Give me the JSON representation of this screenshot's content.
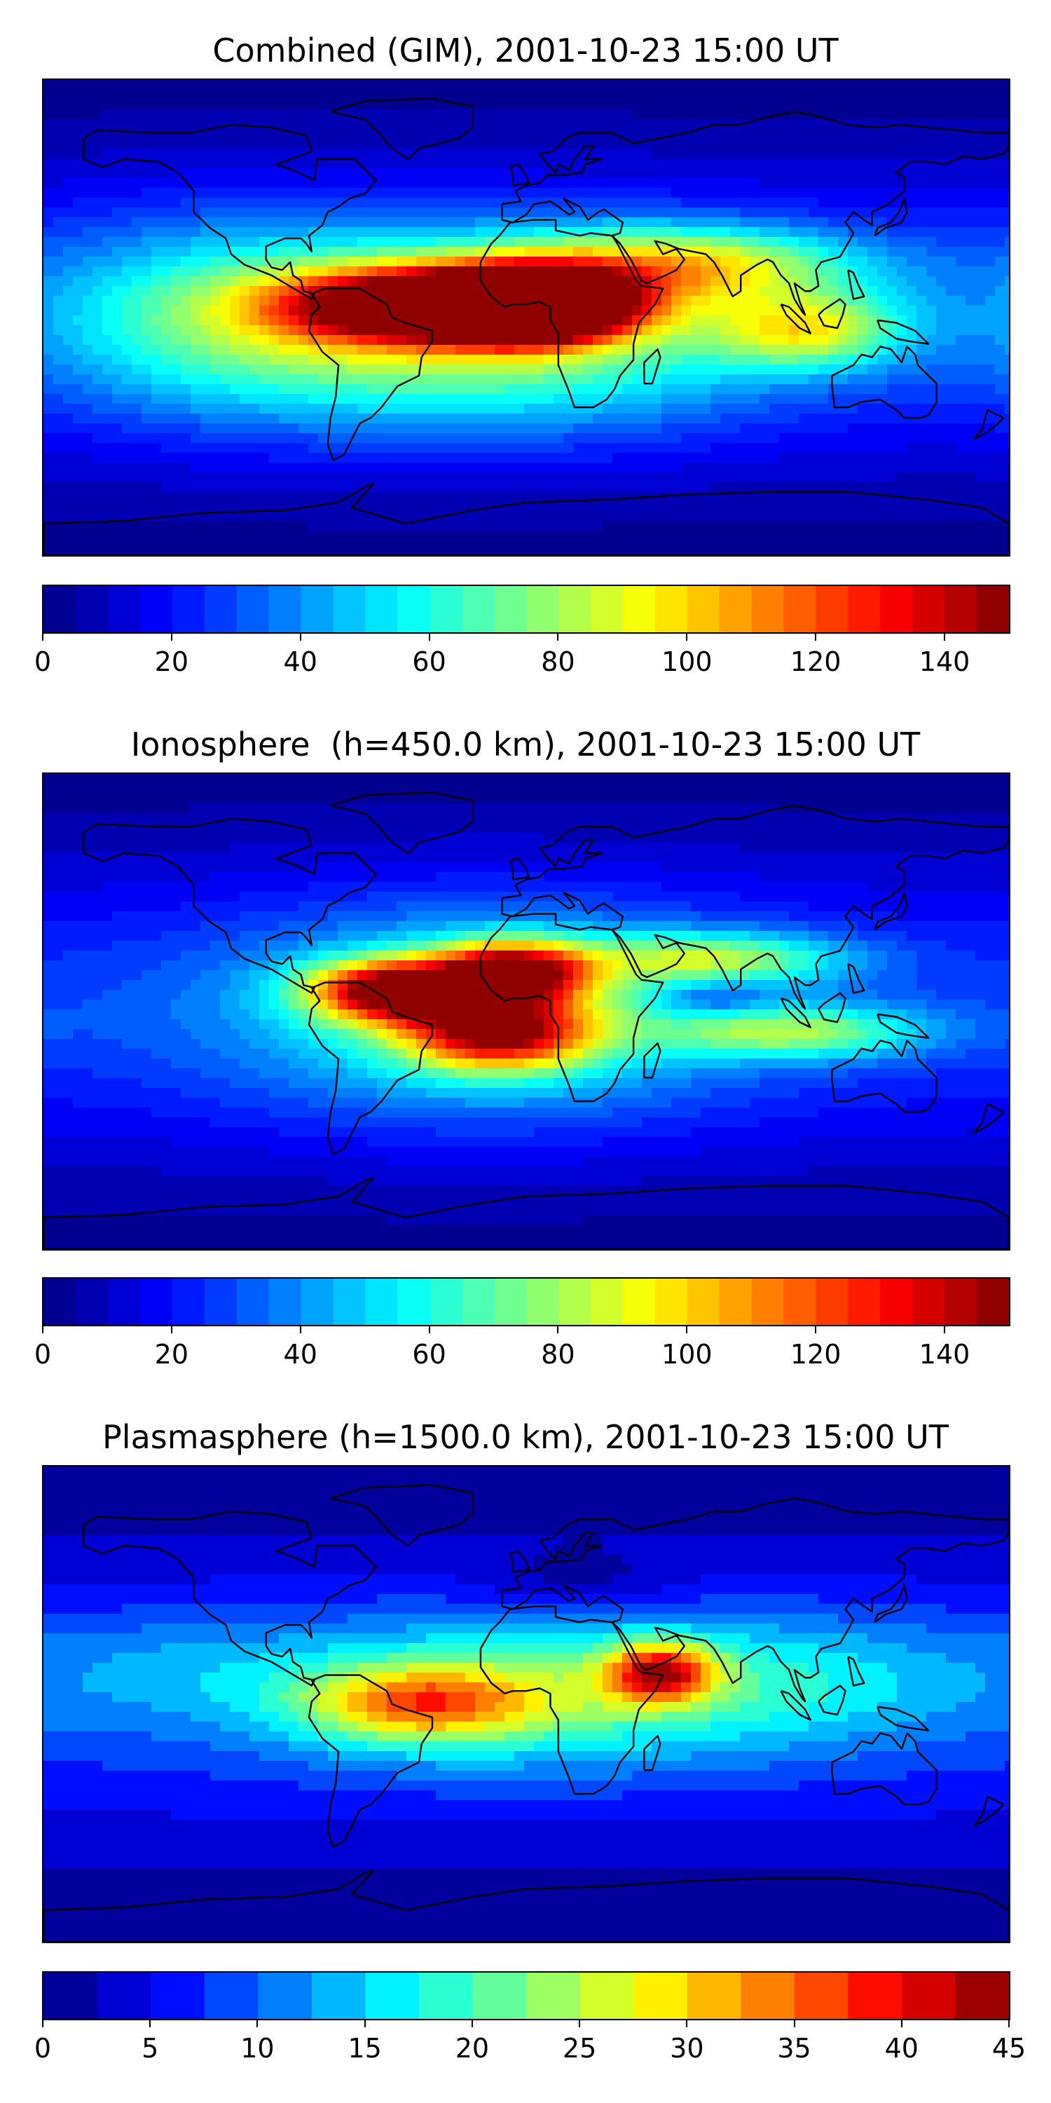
{
  "panels": [
    {
      "title": "Combined (GIM), 2001-10-23 15:00 UT",
      "colorbar": {
        "vmin": 0,
        "vmax": 150,
        "levels": 30,
        "ticks": [
          "0",
          "20",
          "40",
          "60",
          "80",
          "100",
          "120",
          "140"
        ]
      },
      "blobs": [
        {
          "lon": -30,
          "lat": 5,
          "peak": 145,
          "sx": 38,
          "sy": 9
        },
        {
          "lon": 5,
          "lat": 5,
          "peak": 140,
          "sx": 22,
          "sy": 9
        },
        {
          "lon": -10,
          "lat": -5,
          "peak": 60,
          "sx": 70,
          "sy": 25
        },
        {
          "lon": 60,
          "lat": 20,
          "peak": 60,
          "sx": 45,
          "sy": 10
        },
        {
          "lon": 105,
          "lat": -5,
          "peak": 55,
          "sx": 25,
          "sy": 10
        },
        {
          "lon": -110,
          "lat": 0,
          "peak": 35,
          "sx": 50,
          "sy": 25
        }
      ]
    },
    {
      "title": "Ionosphere  (h=450.0 km), 2001-10-23 15:00 UT",
      "colorbar": {
        "vmin": 0,
        "vmax": 150,
        "levels": 30,
        "ticks": [
          "0",
          "20",
          "40",
          "60",
          "80",
          "100",
          "120",
          "140"
        ]
      },
      "blobs": [
        {
          "lon": -50,
          "lat": 8,
          "peak": 110,
          "sx": 22,
          "sy": 8
        },
        {
          "lon": -5,
          "lat": 15,
          "peak": 108,
          "sx": 20,
          "sy": 8
        },
        {
          "lon": -10,
          "lat": -8,
          "peak": 95,
          "sx": 25,
          "sy": 10
        },
        {
          "lon": -15,
          "lat": 0,
          "peak": 40,
          "sx": 65,
          "sy": 28
        },
        {
          "lon": 70,
          "lat": 20,
          "peak": 50,
          "sx": 35,
          "sy": 7
        },
        {
          "lon": 100,
          "lat": -8,
          "peak": 50,
          "sx": 35,
          "sy": 7
        },
        {
          "lon": 70,
          "lat": 5,
          "peak": -20,
          "sx": 14,
          "sy": 5
        }
      ]
    },
    {
      "title": "Plasmasphere (h=1500.0 km), 2001-10-23 15:00 UT",
      "colorbar": {
        "vmin": 0,
        "vmax": 45,
        "levels": 18,
        "ticks": [
          "0",
          "5",
          "10",
          "15",
          "20",
          "25",
          "30",
          "35",
          "40",
          "45"
        ]
      },
      "blobs": [
        {
          "lon": 50,
          "lat": 12,
          "peak": 25,
          "sx": 14,
          "sy": 8
        },
        {
          "lon": -40,
          "lat": 0,
          "peak": 18,
          "sx": 30,
          "sy": 10
        },
        {
          "lon": 0,
          "lat": 5,
          "peak": 14,
          "sx": 70,
          "sy": 20
        },
        {
          "lon": 110,
          "lat": 10,
          "peak": 6,
          "sx": 50,
          "sy": 18
        },
        {
          "lon": -130,
          "lat": 15,
          "peak": 4,
          "sx": 40,
          "sy": 15
        },
        {
          "lon": 20,
          "lat": 45,
          "peak": -4,
          "sx": 25,
          "sy": 8
        }
      ]
    }
  ]
}
